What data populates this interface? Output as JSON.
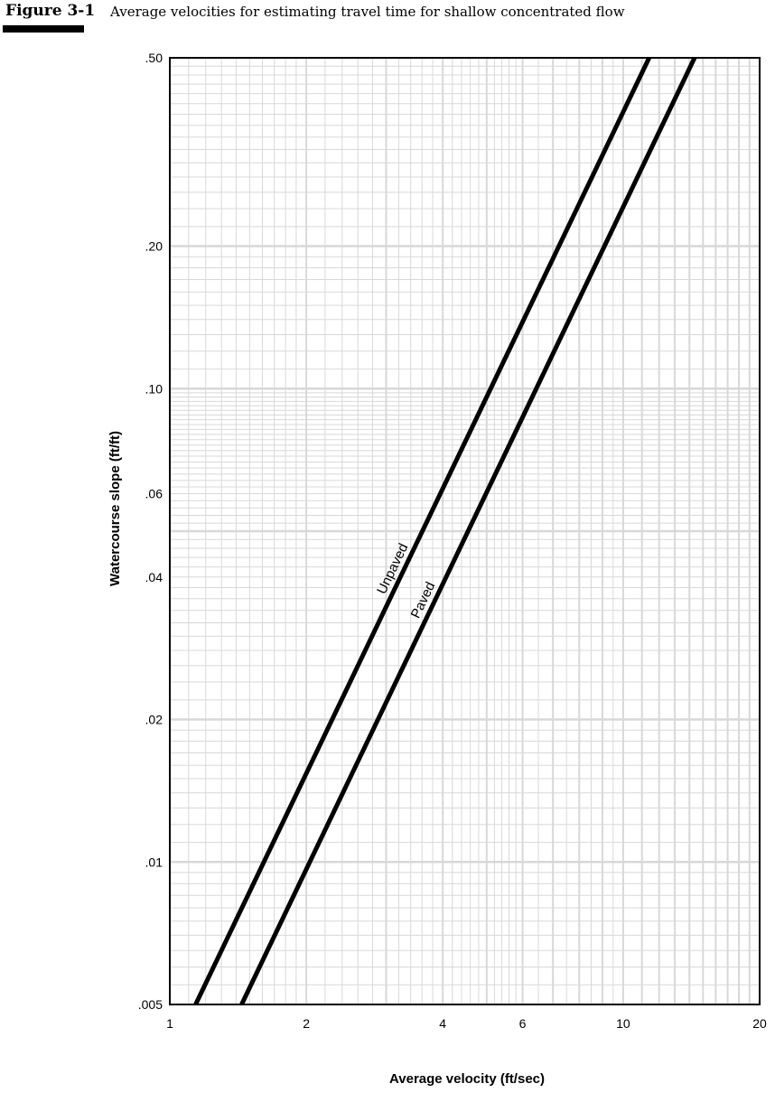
{
  "figure": {
    "number": "Figure 3-1",
    "caption": "Average velocities for estimating travel time for shallow concentrated flow"
  },
  "chart_data": {
    "type": "line",
    "title": "Average velocities for estimating travel time for shallow concentrated flow",
    "xlabel": "Average velocity (ft/sec)",
    "ylabel": "Watercourse slope (ft/ft)",
    "xscale": "log",
    "yscale": "log",
    "xlim": [
      1,
      20
    ],
    "ylim": [
      0.005,
      0.5
    ],
    "grid": true,
    "xticks": [
      {
        "v": 1,
        "label": "1"
      },
      {
        "v": 2,
        "label": "2"
      },
      {
        "v": 4,
        "label": "4"
      },
      {
        "v": 6,
        "label": "6"
      },
      {
        "v": 10,
        "label": "10"
      },
      {
        "v": 20,
        "label": "20"
      }
    ],
    "yticks": [
      {
        "v": 0.5,
        "label": ".50"
      },
      {
        "v": 0.2,
        "label": ".20"
      },
      {
        "v": 0.1,
        "label": ".10"
      },
      {
        "v": 0.06,
        "label": ".06"
      },
      {
        "v": 0.04,
        "label": ".04"
      },
      {
        "v": 0.02,
        "label": ".02"
      },
      {
        "v": 0.01,
        "label": ".01"
      },
      {
        "v": 0.005,
        "label": ".005"
      }
    ],
    "series": [
      {
        "name": "Unpaved",
        "coefficient": 16.1345,
        "x": [
          1.14,
          11.41
        ],
        "y": [
          0.005,
          0.5
        ]
      },
      {
        "name": "Paved",
        "coefficient": 20.3282,
        "x": [
          1.44,
          14.37
        ],
        "y": [
          0.005,
          0.5
        ]
      }
    ],
    "line_color": "#000000",
    "grid_color": "#d8d8d8"
  }
}
